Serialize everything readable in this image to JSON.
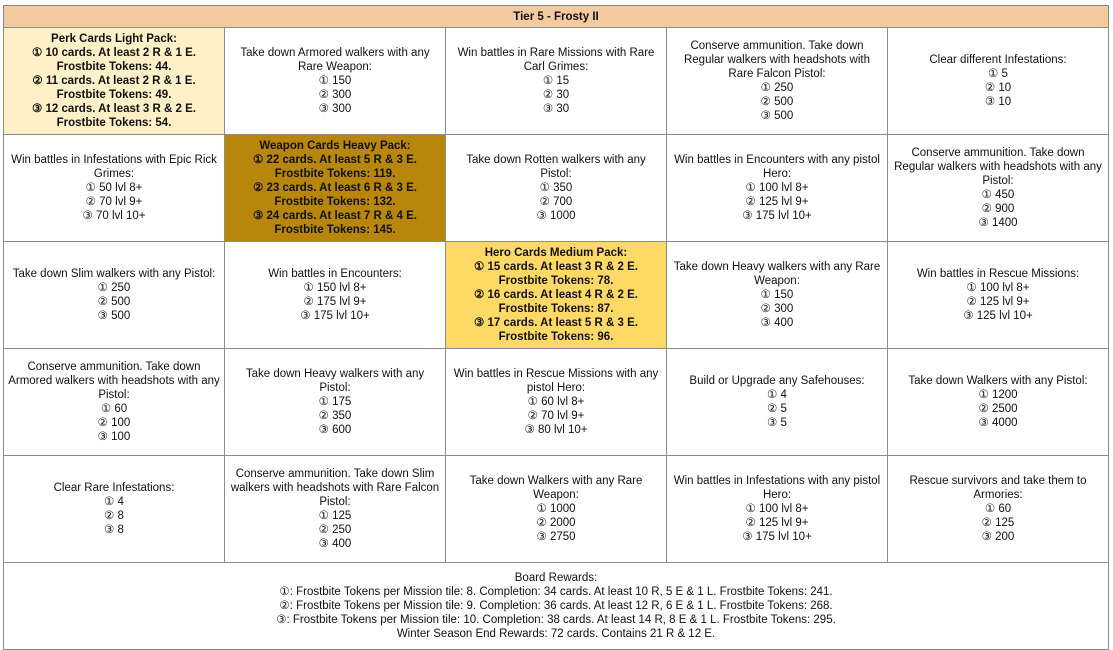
{
  "title": "Tier 5 - Frosty II",
  "rows": [
    [
      {
        "type": "pack",
        "variant": "light",
        "lines": [
          "Perk Cards Light Pack:",
          "① 10 cards. At least 2 R & 1 E.",
          "Frostbite Tokens: 44.",
          "② 11 cards. At least 2 R & 1 E.",
          "Frostbite Tokens: 49.",
          "③ 12 cards. At least 3 R & 2 E.",
          "Frostbite Tokens: 54."
        ]
      },
      {
        "type": "mission",
        "lines": [
          "Take down Armored walkers with any Rare Weapon:",
          "① 150",
          "② 300",
          "③ 300"
        ]
      },
      {
        "type": "mission",
        "lines": [
          "Win battles in Rare Missions with Rare Carl Grimes:",
          "① 15",
          "② 30",
          "③ 30"
        ]
      },
      {
        "type": "mission",
        "lines": [
          "Conserve ammunition. Take down Regular walkers with headshots with Rare Falcon Pistol:",
          "① 250",
          "② 500",
          "③ 500"
        ]
      },
      {
        "type": "mission",
        "lines": [
          "Clear different Infestations:",
          "① 5",
          "② 10",
          "③ 10"
        ]
      }
    ],
    [
      {
        "type": "mission",
        "lines": [
          "Win battles in Infestations with Epic Rick Grimes:",
          "① 50 lvl 8+",
          "② 70 lvl 9+",
          "③ 70 lvl 10+"
        ]
      },
      {
        "type": "pack",
        "variant": "heavy",
        "lines": [
          "Weapon Cards Heavy Pack:",
          "① 22 cards. At least 5 R & 3 E.",
          "Frostbite Tokens: 119.",
          "② 23 cards. At least 6 R & 3 E.",
          "Frostbite Tokens: 132.",
          "③ 24 cards. At least 7 R & 4 E.",
          "Frostbite Tokens: 145."
        ]
      },
      {
        "type": "mission",
        "lines": [
          "Take down Rotten walkers with any Pistol:",
          "① 350",
          "② 700",
          "③ 1000"
        ]
      },
      {
        "type": "mission",
        "lines": [
          "Win battles in Encounters with any pistol Hero:",
          "① 100 lvl 8+",
          "② 125 lvl 9+",
          "③ 175 lvl 10+"
        ]
      },
      {
        "type": "mission",
        "lines": [
          "Conserve ammunition. Take down Regular walkers with headshots with any Pistol:",
          "① 450",
          "② 900",
          "③ 1400"
        ]
      }
    ],
    [
      {
        "type": "mission",
        "lines": [
          "Take down Slim walkers with any Pistol:",
          "① 250",
          "② 500",
          "③ 500"
        ]
      },
      {
        "type": "mission",
        "lines": [
          "Win battles in Encounters:",
          "① 150 lvl 8+",
          "② 175 lvl 9+",
          "③ 175 lvl 10+"
        ]
      },
      {
        "type": "pack",
        "variant": "medium",
        "lines": [
          "Hero Cards Medium Pack:",
          "① 15 cards. At least 3 R & 2 E.",
          "Frostbite Tokens: 78.",
          "② 16 cards. At least 4 R & 2 E.",
          "Frostbite Tokens: 87.",
          "③ 17 cards. At least 5 R & 3 E.",
          "Frostbite Tokens: 96."
        ]
      },
      {
        "type": "mission",
        "lines": [
          "Take down Heavy walkers with any Rare Weapon:",
          "① 150",
          "② 300",
          "③ 400"
        ]
      },
      {
        "type": "mission",
        "lines": [
          "Win battles in Rescue Missions:",
          "① 100 lvl 8+",
          "② 125 lvl 9+",
          "③ 125 lvl 10+"
        ]
      }
    ],
    [
      {
        "type": "mission",
        "lines": [
          "Conserve ammunition. Take down Armored walkers with headshots with any Pistol:",
          "① 60",
          "② 100",
          "③ 100"
        ]
      },
      {
        "type": "mission",
        "lines": [
          "Take down Heavy walkers with any Pistol:",
          "① 175",
          "② 350",
          "③ 600"
        ]
      },
      {
        "type": "mission",
        "lines": [
          "Win battles in Rescue Missions with any pistol Hero:",
          "① 60 lvl 8+",
          "② 70 lvl 9+",
          "③ 80 lvl 10+"
        ]
      },
      {
        "type": "mission",
        "lines": [
          "Build or Upgrade any Safehouses:",
          "① 4",
          "② 5",
          "③ 5"
        ]
      },
      {
        "type": "mission",
        "lines": [
          "Take down Walkers with any Pistol:",
          "① 1200",
          "② 2500",
          "③ 4000"
        ]
      }
    ],
    [
      {
        "type": "mission",
        "lines": [
          "Clear Rare Infestations:",
          "① 4",
          "② 8",
          "③ 8"
        ]
      },
      {
        "type": "mission",
        "lines": [
          "Conserve ammunition. Take down Slim walkers with headshots with Rare Falcon Pistol:",
          "① 125",
          "② 250",
          "③ 400"
        ]
      },
      {
        "type": "mission",
        "lines": [
          "Take down Walkers with any Rare Weapon:",
          "① 1000",
          "② 2000",
          "③ 2750"
        ]
      },
      {
        "type": "mission",
        "lines": [
          "Win battles in Infestations with any pistol Hero:",
          "① 100 lvl 8+",
          "② 125 lvl 9+",
          "③ 175 lvl 10+"
        ]
      },
      {
        "type": "mission",
        "lines": [
          "Rescue survivors and take them to Armories:",
          "① 60",
          "② 125",
          "③ 200"
        ]
      }
    ]
  ],
  "board_rewards": [
    "Board Rewards:",
    "①: Frostbite Tokens per Mission tile: 8. Completion: 34 cards. At least 10 R, 5 E & 1 L. Frostbite Tokens: 241.",
    "②: Frostbite Tokens per Mission tile: 9. Completion: 36 cards. At least 12 R, 6 E & 1 L. Frostbite Tokens: 268.",
    "③: Frostbite Tokens per Mission tile: 10. Completion: 38 cards. At least 14 R, 8 E & 1 L. Frostbite Tokens: 295.",
    "Winter Season End Rewards: 72 cards. Contains 21 R & 12 E."
  ],
  "colors": {
    "title_bg": "#f4cba1",
    "pack_light": "#fff0c7",
    "pack_heavy": "#b8860b",
    "pack_medium": "#ffd966",
    "border": "#8c8c8c"
  }
}
